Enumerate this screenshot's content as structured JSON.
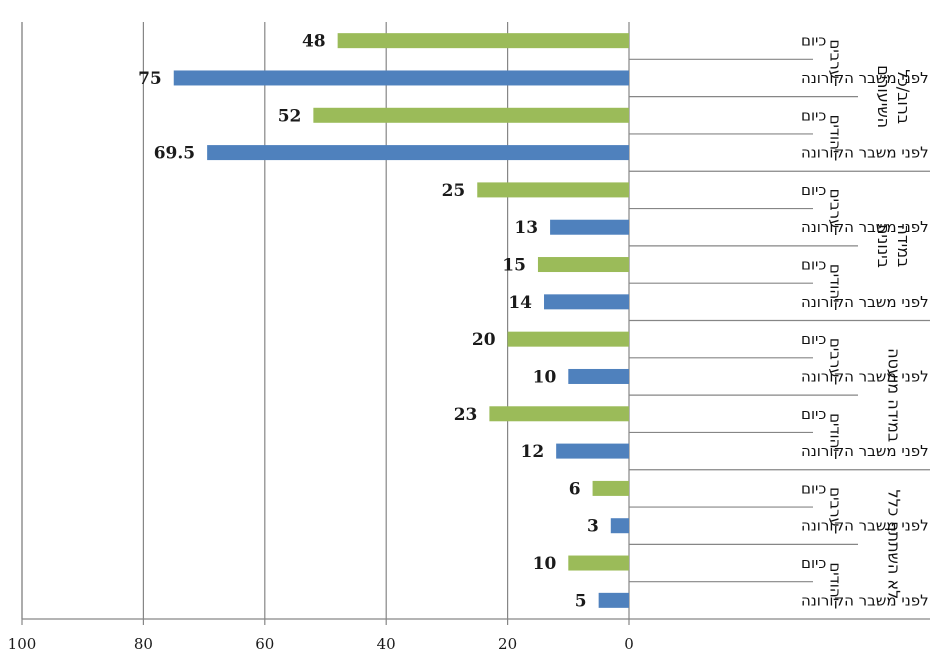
{
  "chart_data": {
    "type": "bar",
    "orientation": "horizontal",
    "direction": "rtl",
    "title": "",
    "xlabel": "",
    "ylabel": "",
    "xlim": [
      0,
      100
    ],
    "x_ticks": [
      "0",
      "20",
      "40",
      "60",
      "80",
      "100"
    ],
    "grid": true,
    "colors": {
      "now": "#9bbb59",
      "before": "#4f81bd"
    },
    "periods": {
      "now": "כיום",
      "before": "לפני משבר הקורונה"
    },
    "groups": [
      {
        "label": "ברוב/כל השיעורים",
        "subgroups": [
          {
            "label": "ערבים",
            "bars": [
              {
                "period": "now",
                "value": 48,
                "label": "48"
              },
              {
                "period": "before",
                "value": 75,
                "label": "75"
              }
            ]
          },
          {
            "label": "יהודים",
            "bars": [
              {
                "period": "now",
                "value": 52,
                "label": "52"
              },
              {
                "period": "before",
                "value": 69.5,
                "label": "69.5"
              }
            ]
          }
        ]
      },
      {
        "label": "במידה בינונית",
        "subgroups": [
          {
            "label": "ערבים",
            "bars": [
              {
                "period": "now",
                "value": 25,
                "label": "25"
              },
              {
                "period": "before",
                "value": 13,
                "label": "13"
              }
            ]
          },
          {
            "label": "יהודים",
            "bars": [
              {
                "period": "now",
                "value": 15,
                "label": "15"
              },
              {
                "period": "before",
                "value": 14,
                "label": "14"
              }
            ]
          }
        ]
      },
      {
        "label": "במידה מועטה",
        "subgroups": [
          {
            "label": "ערבים",
            "bars": [
              {
                "period": "now",
                "value": 20,
                "label": "20"
              },
              {
                "period": "before",
                "value": 10,
                "label": "10"
              }
            ]
          },
          {
            "label": "יהודים",
            "bars": [
              {
                "period": "now",
                "value": 23,
                "label": "23"
              },
              {
                "period": "before",
                "value": 12,
                "label": "12"
              }
            ]
          }
        ]
      },
      {
        "label": "לא השתתף כלל",
        "subgroups": [
          {
            "label": "ערבים",
            "bars": [
              {
                "period": "now",
                "value": 6,
                "label": "6"
              },
              {
                "period": "before",
                "value": 3,
                "label": "3"
              }
            ]
          },
          {
            "label": "יהודים",
            "bars": [
              {
                "period": "now",
                "value": 10,
                "label": "10"
              },
              {
                "period": "before",
                "value": 5,
                "label": "5"
              }
            ]
          }
        ]
      }
    ]
  }
}
